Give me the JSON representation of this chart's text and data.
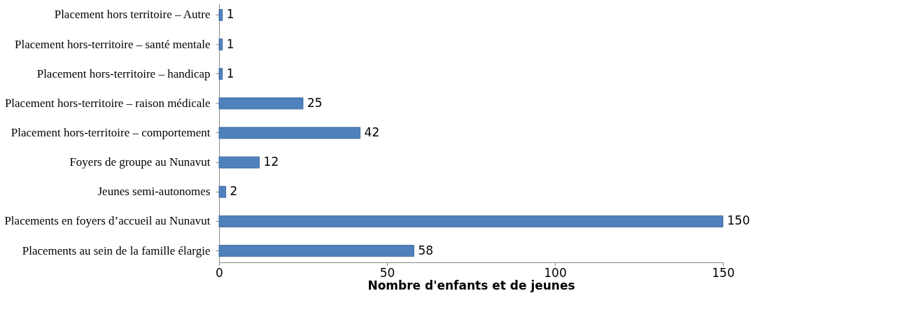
{
  "chart_data": {
    "type": "bar",
    "orientation": "horizontal",
    "xlabel": "Nombre d'enfants et de jeunes",
    "categories": [
      "Placement hors territoire – Autre",
      "Placement hors-territoire – santé mentale",
      "Placement hors-territoire – handicap",
      "Placement hors-territoire – raison médicale",
      "Placement hors-territoire – comportement",
      "Foyers de groupe au Nunavut",
      "Jeunes semi-autonomes",
      "Placements en foyers d’accueil au Nunavut",
      "Placements au sein de la famille élargie"
    ],
    "values": [
      1,
      1,
      1,
      25,
      42,
      12,
      2,
      150,
      58
    ],
    "color": "#4f81bd",
    "xlim": [
      0,
      150
    ],
    "xticks": [
      0,
      50,
      100,
      150
    ],
    "data_labels": true,
    "grid": false
  }
}
